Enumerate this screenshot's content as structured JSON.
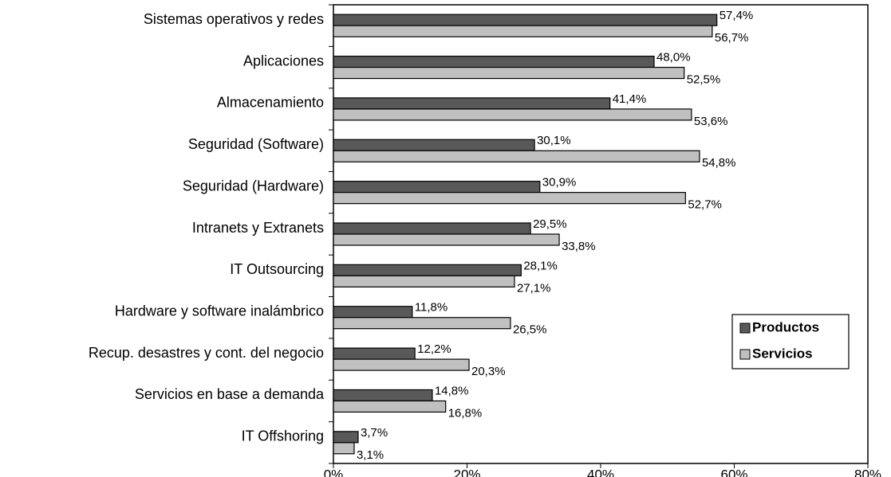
{
  "chart_data": {
    "type": "bar",
    "orientation": "horizontal",
    "categories": [
      "Sistemas operativos y redes",
      "Aplicaciones",
      "Almacenamiento",
      "Seguridad (Software)",
      "Seguridad (Hardware)",
      "Intranets y Extranets",
      "IT Outsourcing",
      "Hardware y software inalámbrico",
      "Recup. desastres y cont. del negocio",
      "Servicios en base a demanda",
      "IT Offshoring"
    ],
    "series": [
      {
        "name": "Productos",
        "color": "#595959",
        "values": [
          57.4,
          48.0,
          41.4,
          30.1,
          30.9,
          29.5,
          28.1,
          11.8,
          12.2,
          14.8,
          3.7
        ],
        "value_labels": [
          "57,4%",
          "48,0%",
          "41,4%",
          "30,1%",
          "30,9%",
          "29,5%",
          "28,1%",
          "11,8%",
          "12,2%",
          "14,8%",
          "3,7%"
        ]
      },
      {
        "name": "Servicios",
        "color": "#c0c0c0",
        "values": [
          56.7,
          52.5,
          53.6,
          54.8,
          52.7,
          33.8,
          27.1,
          26.5,
          20.3,
          16.8,
          3.1
        ],
        "value_labels": [
          "56,7%",
          "52,5%",
          "53,6%",
          "54,8%",
          "52,7%",
          "33,8%",
          "27,1%",
          "26,5%",
          "20,3%",
          "16,8%",
          "3,1%"
        ]
      }
    ],
    "xlim": [
      0,
      80
    ],
    "xticks": [
      {
        "value": 0,
        "label": "0%"
      },
      {
        "value": 20,
        "label": "20%"
      },
      {
        "value": 40,
        "label": "40%"
      },
      {
        "value": 60,
        "label": "60%"
      },
      {
        "value": 80,
        "label": "80%"
      }
    ]
  }
}
